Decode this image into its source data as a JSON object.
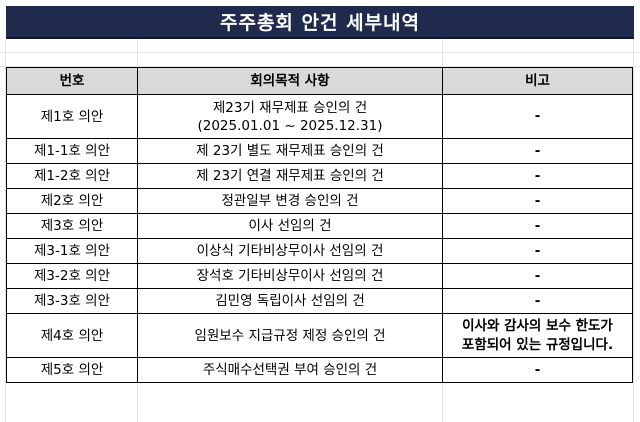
{
  "title": "주주총회 안건 세부내역",
  "table": {
    "headers": [
      "번호",
      "회의목적 사항",
      "비고"
    ],
    "rows": [
      {
        "no": "제1호 의안",
        "purpose": [
          "제23기 재무제표 승인의 건",
          "(2025.01.01 ~ 2025.12.31)"
        ],
        "note": [
          "-"
        ]
      },
      {
        "no": "제1-1호 의안",
        "purpose": [
          "제 23기 별도 재무제표 승인의 건"
        ],
        "note": [
          "-"
        ]
      },
      {
        "no": "제1-2호 의안",
        "purpose": [
          "제 23기 연결 재무제표 승인의 건"
        ],
        "note": [
          "-"
        ]
      },
      {
        "no": "제2호 의안",
        "purpose": [
          "정관일부 변경 승인의 건"
        ],
        "note": [
          "-"
        ]
      },
      {
        "no": "제3호 의안",
        "purpose": [
          "이사 선임의 건"
        ],
        "note": [
          "-"
        ]
      },
      {
        "no": "제3-1호 의안",
        "purpose": [
          "이상식 기타비상무이사 선임의 건"
        ],
        "note": [
          "-"
        ]
      },
      {
        "no": "제3-2호 의안",
        "purpose": [
          "장석호 기타비상무이사 선임의 건"
        ],
        "note": [
          "-"
        ]
      },
      {
        "no": "제3-3호 의안",
        "purpose": [
          "김민영 독립이사 선임의 건"
        ],
        "note": [
          "-"
        ]
      },
      {
        "no": "제4호 의안",
        "purpose": [
          "임원보수 지급규정 제정 승인의 건"
        ],
        "note": [
          "이사와 감사의 보수 한도가",
          "포함되어 있는 규정입니다."
        ]
      },
      {
        "no": "제5호 의안",
        "purpose": [
          "주식매수선택권 부여 승인의 건"
        ],
        "note": [
          "-"
        ]
      }
    ]
  }
}
